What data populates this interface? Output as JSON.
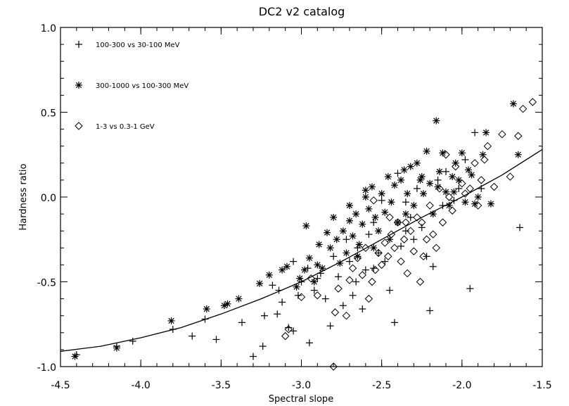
{
  "chart_data": {
    "type": "scatter",
    "title": "DC2 v2 catalog",
    "xlabel": "Spectral slope",
    "ylabel": "Hardness ratio",
    "xlim": [
      -4.5,
      -1.5
    ],
    "ylim": [
      -1.0,
      1.0
    ],
    "xticks": [
      -4.5,
      -4.0,
      -3.5,
      -3.0,
      -2.5,
      -2.0,
      -1.5
    ],
    "xtick_labels": [
      "-4.5",
      "-4.0",
      "-3.5",
      "-3.0",
      "-2.5",
      "-2.0",
      "-1.5"
    ],
    "yticks": [
      -1.0,
      -0.5,
      0.0,
      0.5,
      1.0
    ],
    "ytick_labels": [
      "-1.0",
      "-0.5",
      "0.0",
      "0.5",
      "1.0"
    ],
    "grid": false,
    "legend_position": "top-left",
    "series": [
      {
        "name": "100-300 vs 30-100 MeV",
        "marker": "plus",
        "points": [
          [
            -4.4,
            -0.93
          ],
          [
            -4.15,
            -0.88
          ],
          [
            -4.05,
            -0.85
          ],
          [
            -3.8,
            -0.78
          ],
          [
            -3.68,
            -0.82
          ],
          [
            -3.6,
            -0.72
          ],
          [
            -3.53,
            -0.84
          ],
          [
            -3.37,
            -0.74
          ],
          [
            -3.3,
            -0.94
          ],
          [
            -3.24,
            -0.88
          ],
          [
            -3.23,
            -0.7
          ],
          [
            -3.15,
            -0.69
          ],
          [
            -3.18,
            -0.52
          ],
          [
            -3.14,
            -0.55
          ],
          [
            -3.12,
            -0.62
          ],
          [
            -3.08,
            -0.77
          ],
          [
            -3.05,
            -0.79
          ],
          [
            -3.02,
            -0.58
          ],
          [
            -3.0,
            -0.5
          ],
          [
            -2.95,
            -0.86
          ],
          [
            -2.96,
            -0.42
          ],
          [
            -2.92,
            -0.55
          ],
          [
            -2.88,
            -0.45
          ],
          [
            -2.85,
            -0.6
          ],
          [
            -2.82,
            -0.76
          ],
          [
            -2.8,
            -0.35
          ],
          [
            -2.77,
            -0.47
          ],
          [
            -2.74,
            -0.64
          ],
          [
            -2.72,
            -0.25
          ],
          [
            -2.7,
            -0.38
          ],
          [
            -2.68,
            -0.58
          ],
          [
            -2.66,
            -0.5
          ],
          [
            -2.62,
            -0.66
          ],
          [
            -2.6,
            -0.43
          ],
          [
            -2.58,
            -0.22
          ],
          [
            -2.55,
            -0.42
          ],
          [
            -2.52,
            -0.33
          ],
          [
            -2.5,
            -0.02
          ],
          [
            -2.48,
            -0.38
          ],
          [
            -2.45,
            -0.55
          ],
          [
            -2.42,
            -0.74
          ],
          [
            -2.4,
            0.14
          ],
          [
            -2.38,
            -0.29
          ],
          [
            -2.35,
            -0.03
          ],
          [
            -2.32,
            -0.12
          ],
          [
            -2.3,
            -0.25
          ],
          [
            -2.28,
            0.05
          ],
          [
            -2.25,
            -0.18
          ],
          [
            -2.22,
            -0.35
          ],
          [
            -2.2,
            -0.67
          ],
          [
            -2.18,
            -0.41
          ],
          [
            -2.15,
            0.1
          ],
          [
            -2.12,
            -0.05
          ],
          [
            -2.1,
            0.15
          ],
          [
            -2.05,
            -0.02
          ],
          [
            -2.02,
            0.05
          ],
          [
            -1.98,
            0.22
          ],
          [
            -1.95,
            -0.54
          ],
          [
            -1.92,
            0.38
          ],
          [
            -1.88,
            0.05
          ],
          [
            -1.64,
            -0.18
          ],
          [
            -3.05,
            -0.38
          ],
          [
            -2.9,
            -0.48
          ],
          [
            -2.65,
            -0.3
          ],
          [
            -2.55,
            -0.15
          ],
          [
            -2.35,
            -0.2
          ]
        ]
      },
      {
        "name": "300-1000 vs 100-300 MeV",
        "marker": "asterisk",
        "points": [
          [
            -4.41,
            -0.94
          ],
          [
            -4.15,
            -0.89
          ],
          [
            -3.81,
            -0.73
          ],
          [
            -3.59,
            -0.66
          ],
          [
            -3.48,
            -0.64
          ],
          [
            -3.46,
            -0.63
          ],
          [
            -3.39,
            -0.6
          ],
          [
            -3.26,
            -0.51
          ],
          [
            -3.2,
            -0.46
          ],
          [
            -3.12,
            -0.43
          ],
          [
            -3.09,
            -0.41
          ],
          [
            -3.03,
            -0.53
          ],
          [
            -3.01,
            -0.48
          ],
          [
            -2.98,
            -0.43
          ],
          [
            -2.97,
            -0.17
          ],
          [
            -2.95,
            -0.36
          ],
          [
            -2.92,
            -0.5
          ],
          [
            -2.89,
            -0.28
          ],
          [
            -2.87,
            -0.42
          ],
          [
            -2.84,
            -0.21
          ],
          [
            -2.82,
            -0.3
          ],
          [
            -2.8,
            -0.12
          ],
          [
            -2.78,
            -0.25
          ],
          [
            -2.76,
            -0.39
          ],
          [
            -2.74,
            -0.2
          ],
          [
            -2.72,
            -0.33
          ],
          [
            -2.7,
            -0.14
          ],
          [
            -2.68,
            -0.23
          ],
          [
            -2.66,
            -0.1
          ],
          [
            -2.64,
            -0.28
          ],
          [
            -2.62,
            -0.16
          ],
          [
            -2.6,
            0.0
          ],
          [
            -2.58,
            -0.07
          ],
          [
            -2.56,
            0.06
          ],
          [
            -2.54,
            -0.12
          ],
          [
            -2.52,
            -0.2
          ],
          [
            -2.5,
            0.02
          ],
          [
            -2.48,
            -0.09
          ],
          [
            -2.46,
            0.12
          ],
          [
            -2.44,
            -0.03
          ],
          [
            -2.42,
            0.07
          ],
          [
            -2.4,
            -0.15
          ],
          [
            -2.38,
            0.1
          ],
          [
            -2.36,
            0.16
          ],
          [
            -2.34,
            0.02
          ],
          [
            -2.32,
            0.18
          ],
          [
            -2.3,
            -0.05
          ],
          [
            -2.28,
            0.2
          ],
          [
            -2.26,
            0.1
          ],
          [
            -2.24,
            0.02
          ],
          [
            -2.22,
            0.27
          ],
          [
            -2.2,
            0.08
          ],
          [
            -2.18,
            -0.1
          ],
          [
            -2.16,
            0.45
          ],
          [
            -2.14,
            0.15
          ],
          [
            -2.12,
            0.26
          ],
          [
            -2.1,
            0.03
          ],
          [
            -2.08,
            -0.05
          ],
          [
            -2.06,
            0.12
          ],
          [
            -2.04,
            0.2
          ],
          [
            -2.02,
            0.1
          ],
          [
            -2.0,
            0.26
          ],
          [
            -1.98,
            -0.03
          ],
          [
            -1.96,
            0.16
          ],
          [
            -1.94,
            0.13
          ],
          [
            -1.9,
            0.0
          ],
          [
            -1.87,
            0.25
          ],
          [
            -1.85,
            0.38
          ],
          [
            -1.82,
            -0.04
          ],
          [
            -1.68,
            0.55
          ],
          [
            -1.65,
            0.25
          ],
          [
            -2.9,
            -0.4
          ],
          [
            -2.65,
            -0.35
          ],
          [
            -2.55,
            -0.3
          ],
          [
            -2.45,
            -0.25
          ],
          [
            -2.35,
            -0.1
          ],
          [
            -2.25,
            0.12
          ],
          [
            -2.15,
            0.06
          ],
          [
            -1.92,
            -0.04
          ],
          [
            -2.7,
            -0.05
          ],
          [
            -2.6,
            0.04
          ],
          [
            -2.05,
            0.03
          ]
        ]
      },
      {
        "name": "1-3 vs 0.3-1 GeV",
        "marker": "diamond",
        "points": [
          [
            -3.1,
            -0.82
          ],
          [
            -3.08,
            -0.78
          ],
          [
            -3.0,
            -0.59
          ],
          [
            -2.94,
            -0.48
          ],
          [
            -2.8,
            -1.0
          ],
          [
            -2.79,
            -0.68
          ],
          [
            -2.77,
            -0.54
          ],
          [
            -2.72,
            -0.7
          ],
          [
            -2.7,
            -0.49
          ],
          [
            -2.68,
            -0.42
          ],
          [
            -2.65,
            -0.36
          ],
          [
            -2.62,
            -0.46
          ],
          [
            -2.58,
            -0.6
          ],
          [
            -2.56,
            -0.5
          ],
          [
            -2.54,
            -0.43
          ],
          [
            -2.52,
            -0.33
          ],
          [
            -2.5,
            -0.4
          ],
          [
            -2.48,
            -0.27
          ],
          [
            -2.46,
            -0.35
          ],
          [
            -2.44,
            -0.22
          ],
          [
            -2.42,
            -0.3
          ],
          [
            -2.4,
            -0.15
          ],
          [
            -2.38,
            -0.38
          ],
          [
            -2.36,
            -0.25
          ],
          [
            -2.34,
            -0.45
          ],
          [
            -2.32,
            -0.2
          ],
          [
            -2.3,
            -0.32
          ],
          [
            -2.28,
            -0.12
          ],
          [
            -2.26,
            -0.5
          ],
          [
            -2.24,
            -0.35
          ],
          [
            -2.22,
            -0.25
          ],
          [
            -2.2,
            -0.05
          ],
          [
            -2.18,
            -0.22
          ],
          [
            -2.16,
            -0.3
          ],
          [
            -2.14,
            0.05
          ],
          [
            -2.12,
            -0.15
          ],
          [
            -2.1,
            0.25
          ],
          [
            -2.08,
            0.0
          ],
          [
            -2.06,
            -0.08
          ],
          [
            -2.04,
            0.18
          ],
          [
            -2.0,
            0.08
          ],
          [
            -1.98,
            0.02
          ],
          [
            -1.95,
            0.05
          ],
          [
            -1.92,
            0.2
          ],
          [
            -1.9,
            -0.05
          ],
          [
            -1.88,
            0.1
          ],
          [
            -1.86,
            0.22
          ],
          [
            -1.84,
            0.3
          ],
          [
            -1.8,
            0.06
          ],
          [
            -1.75,
            0.37
          ],
          [
            -1.7,
            0.12
          ],
          [
            -1.65,
            0.36
          ],
          [
            -1.62,
            0.52
          ],
          [
            -1.56,
            0.56
          ],
          [
            -2.9,
            -0.58
          ],
          [
            -2.6,
            -0.3
          ],
          [
            -2.35,
            -0.15
          ],
          [
            -2.55,
            -0.02
          ],
          [
            -2.45,
            -0.12
          ],
          [
            -2.25,
            -0.15
          ]
        ]
      }
    ],
    "fit_curve": {
      "type": "line",
      "points": [
        [
          -4.5,
          -0.91
        ],
        [
          -4.25,
          -0.88
        ],
        [
          -4.0,
          -0.83
        ],
        [
          -3.75,
          -0.77
        ],
        [
          -3.5,
          -0.69
        ],
        [
          -3.25,
          -0.6
        ],
        [
          -3.0,
          -0.5
        ],
        [
          -2.75,
          -0.38
        ],
        [
          -2.5,
          -0.25
        ],
        [
          -2.25,
          -0.12
        ],
        [
          -2.0,
          0.0
        ],
        [
          -1.75,
          0.13
        ],
        [
          -1.5,
          0.28
        ]
      ]
    }
  }
}
